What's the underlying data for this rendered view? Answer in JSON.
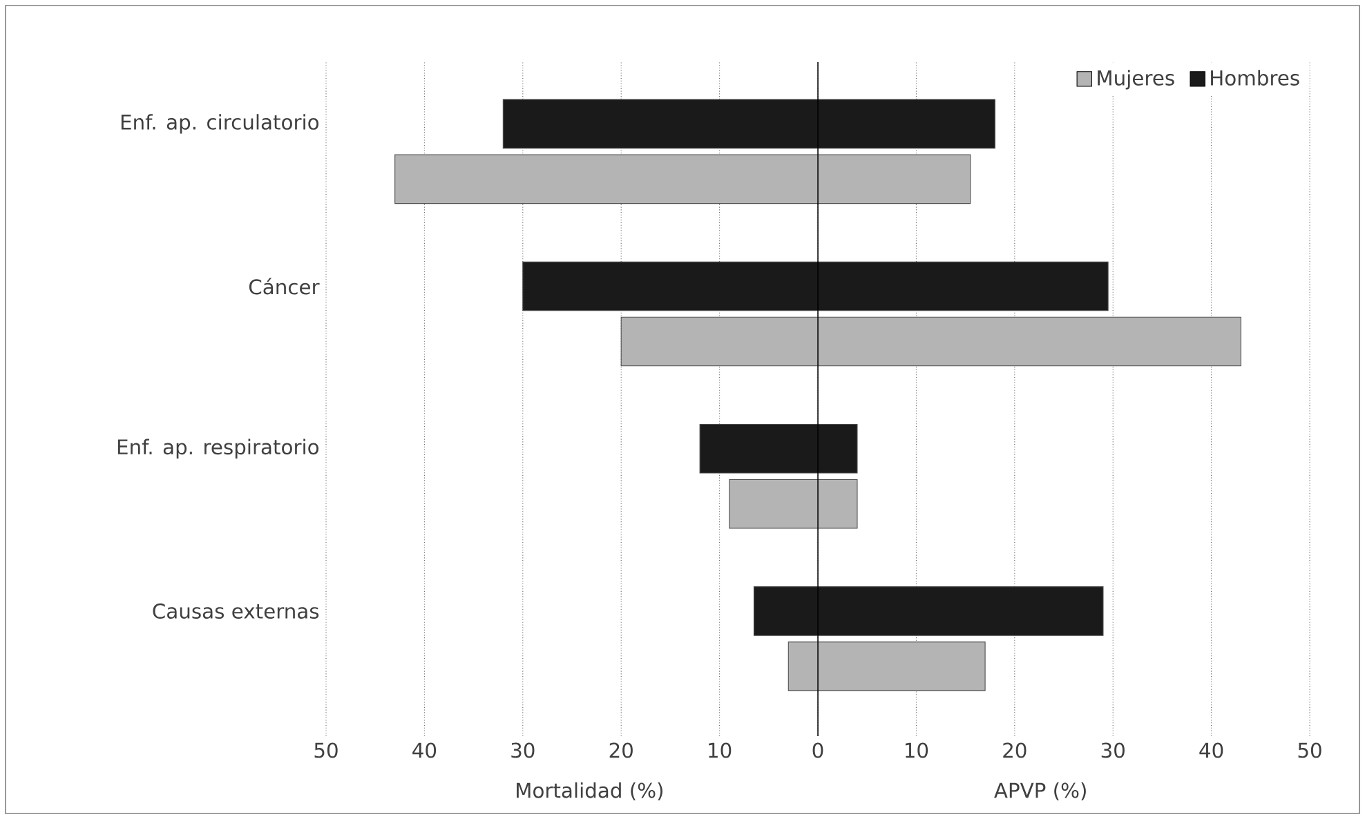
{
  "chart_data": {
    "type": "bar",
    "orientation": "horizontal",
    "xlabel": "Mortalidad (%)",
    "annotations": [
      "APVP (%)"
    ],
    "categories": [
      "Enf. ap. circulatorio",
      "Cáncer",
      "Enf. ap. respiratorio",
      "Causas externas"
    ],
    "series": [
      {
        "name": "Hombres",
        "color": "#1a1a1a",
        "base": [
          -32,
          -30,
          -12,
          -6.5
        ],
        "values": [
          50,
          59.5,
          16,
          35.5
        ]
      },
      {
        "name": "Mujeres",
        "color": "#b4b4b4",
        "base": [
          -43,
          -20,
          -9,
          -3
        ],
        "values": [
          58.5,
          63,
          13,
          20
        ]
      }
    ],
    "xlim": [
      -50,
      50
    ],
    "xticks": [
      {
        "value": -50,
        "label": "50"
      },
      {
        "value": -40,
        "label": "40"
      },
      {
        "value": -30,
        "label": "30"
      },
      {
        "value": -20,
        "label": "20"
      },
      {
        "value": -10,
        "label": "10"
      },
      0,
      10,
      20,
      30,
      40,
      50
    ],
    "ref_lines": [
      {
        "axis": "x",
        "value": 0
      }
    ],
    "grid": "x",
    "legend": "top right"
  }
}
